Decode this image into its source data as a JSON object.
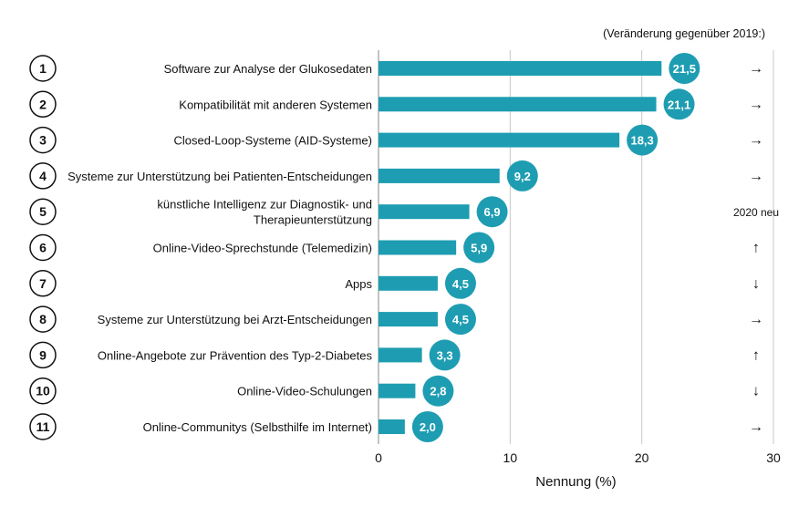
{
  "note": "(Veränderung gegenüber 2019:)",
  "chart_data": {
    "type": "bar",
    "orientation": "horizontal",
    "title": "",
    "xlabel": "Nennung (%)",
    "ylabel": "",
    "xlim": [
      0,
      30
    ],
    "xticks": [
      0,
      10,
      20,
      30
    ],
    "grid": true,
    "bar_color": "#1e9db2",
    "badge_color": "#1e9db2",
    "items": [
      {
        "rank": "1",
        "label": [
          "Software zur Analyse der Glukosedaten"
        ],
        "value": 21.5,
        "value_label": "21,5",
        "change": "→"
      },
      {
        "rank": "2",
        "label": [
          "Kompatibilität mit anderen Systemen"
        ],
        "value": 21.1,
        "value_label": "21,1",
        "change": "→"
      },
      {
        "rank": "3",
        "label": [
          "Closed-Loop-Systeme (AID-Systeme)"
        ],
        "value": 18.3,
        "value_label": "18,3",
        "change": "→"
      },
      {
        "rank": "4",
        "label": [
          "Systeme zur Unterstützung bei Patienten-Entscheidungen"
        ],
        "value": 9.2,
        "value_label": "9,2",
        "change": "→"
      },
      {
        "rank": "5",
        "label": [
          "künstliche Intelligenz zur Diagnostik- und",
          "Therapieunterstützung"
        ],
        "value": 6.9,
        "value_label": "6,9",
        "change": "2020 neu"
      },
      {
        "rank": "6",
        "label": [
          "Online-Video-Sprechstunde (Telemedizin)"
        ],
        "value": 5.9,
        "value_label": "5,9",
        "change": "↑"
      },
      {
        "rank": "7",
        "label": [
          "Apps"
        ],
        "value": 4.5,
        "value_label": "4,5",
        "change": "↓"
      },
      {
        "rank": "8",
        "label": [
          "Systeme zur Unterstützung bei Arzt-Entscheidungen"
        ],
        "value": 4.5,
        "value_label": "4,5",
        "change": "→"
      },
      {
        "rank": "9",
        "label": [
          "Online-Angebote zur Prävention des Typ-2-Diabetes"
        ],
        "value": 3.3,
        "value_label": "3,3",
        "change": "↑"
      },
      {
        "rank": "10",
        "label": [
          "Online-Video-Schulungen"
        ],
        "value": 2.8,
        "value_label": "2,8",
        "change": "↓"
      },
      {
        "rank": "11",
        "label": [
          "Online-Communitys (Selbsthilfe im Internet)"
        ],
        "value": 2.0,
        "value_label": "2,0",
        "change": "→"
      }
    ]
  }
}
